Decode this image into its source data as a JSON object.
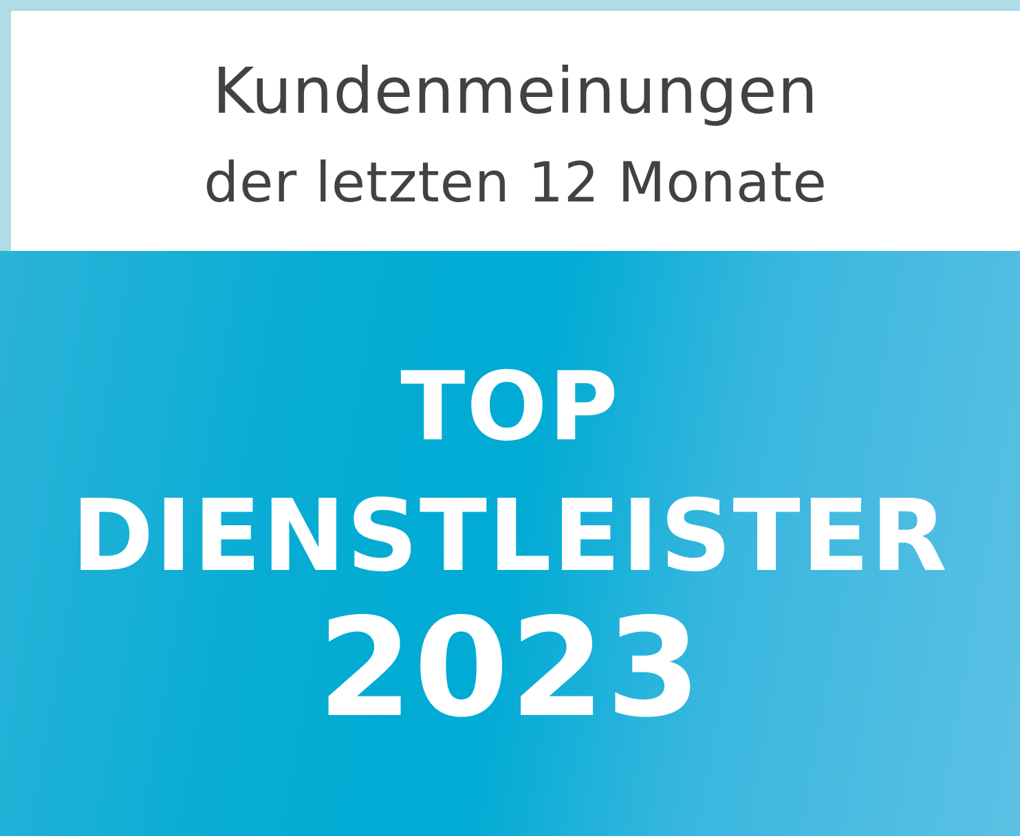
{
  "header": {
    "line1": "Kundenmeinungen",
    "line2": "der letzten 12 Monate"
  },
  "badge": {
    "line1": "TOP",
    "line2": "DIENSTLEISTER",
    "year": "2023"
  },
  "colors": {
    "frame": "#afdce6",
    "panel": "#00abd4",
    "header_text": "#414243",
    "badge_text": "#ffffff"
  }
}
